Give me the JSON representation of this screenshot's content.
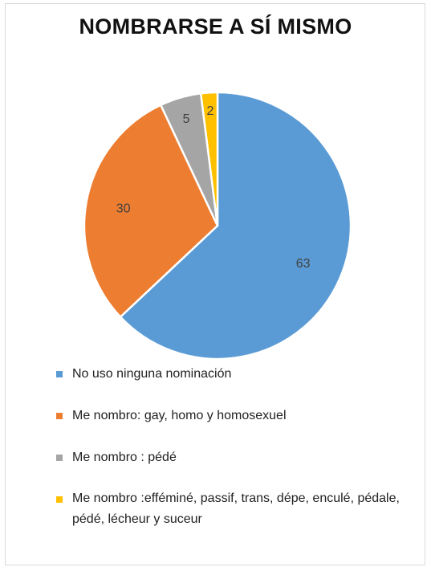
{
  "chart_data": {
    "type": "pie",
    "title": "NOMBRARSE A SÍ MISMO",
    "legend_position": "bottom",
    "start_angle_deg": 0,
    "direction": "clockwise",
    "slices": [
      {
        "label": "No uso ninguna nominación",
        "value": 63,
        "color": "#5b9bd5"
      },
      {
        "label": "Me nombro: gay, homo y homosexuel",
        "value": 30,
        "color": "#ed7d31"
      },
      {
        "label": "Me nombro : pédé",
        "value": 5,
        "color": "#a5a5a5"
      },
      {
        "label": "Me nombro :efféminé, passif, trans, dépe, enculé, pédale, pédé, lécheur y suceur",
        "value": 2,
        "color": "#ffc000"
      }
    ]
  }
}
